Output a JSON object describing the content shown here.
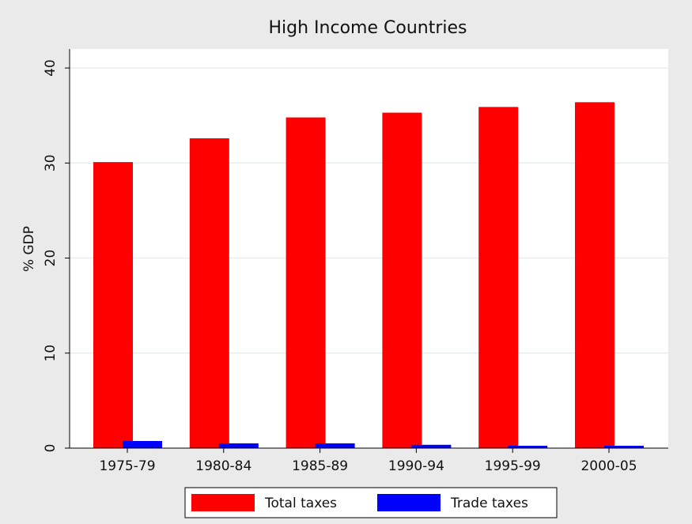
{
  "chart_data": {
    "type": "bar",
    "title": "High Income Countries",
    "y_label": "% GDP",
    "categories": [
      "1975-79",
      "1980-84",
      "1985-89",
      "1990-94",
      "1995-99",
      "2000-05"
    ],
    "series": [
      {
        "name": "Total taxes",
        "color": "#ff0000",
        "values": [
          30.1,
          32.6,
          34.8,
          35.3,
          35.9,
          36.4
        ]
      },
      {
        "name": "Trade taxes",
        "color": "#0000ff",
        "values": [
          0.75,
          0.5,
          0.5,
          0.35,
          0.25,
          0.25
        ]
      }
    ],
    "ylim": [
      0,
      42
    ],
    "yticks": [
      0,
      10,
      20,
      30,
      40
    ],
    "grid": true,
    "legend": "bottom"
  }
}
